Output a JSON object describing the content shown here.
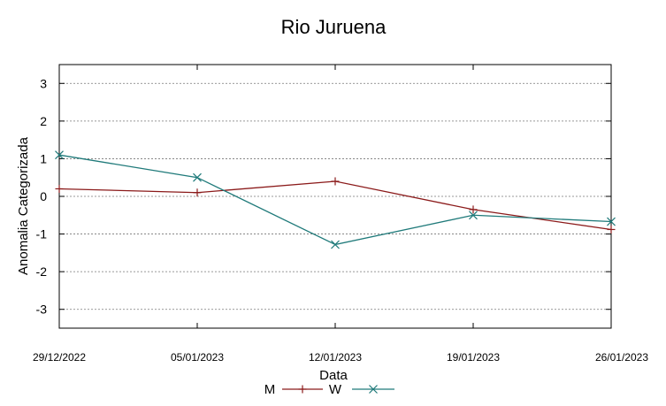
{
  "chart_data": {
    "type": "line",
    "title": "Rio Juruena",
    "xlabel": "Data",
    "ylabel": "Anomalia Categorizada",
    "categories": [
      "29/12/2022",
      "05/01/2023",
      "12/01/2023",
      "19/01/2023",
      "26/01/2023"
    ],
    "ylim": [
      -3.5,
      3.5
    ],
    "yticks": [
      -3,
      -2,
      -1,
      0,
      1,
      2,
      3
    ],
    "grid": true,
    "legend_position": "bottom",
    "series": [
      {
        "name": "M",
        "marker": "plus",
        "color": "#8b1a1a",
        "values": [
          0.2,
          0.1,
          0.4,
          -0.35,
          -0.88
        ]
      },
      {
        "name": "W",
        "marker": "x",
        "color": "#1f7a7a",
        "values": [
          1.1,
          0.5,
          -1.28,
          -0.5,
          -0.67
        ]
      }
    ]
  }
}
